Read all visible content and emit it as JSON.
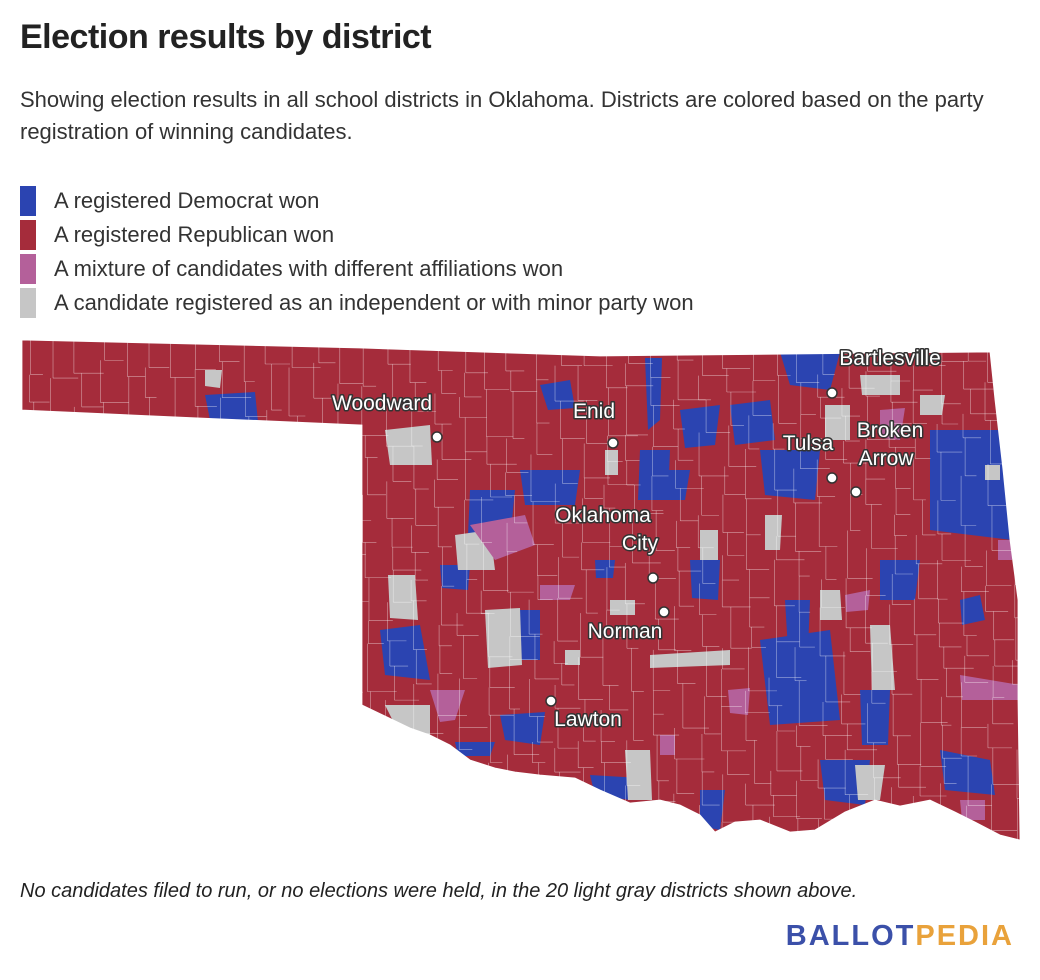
{
  "header": {
    "title": "Election results by district",
    "subtitle": "Showing election results in all school districts in Oklahoma. Districts are colored based on the party registration of winning candidates."
  },
  "legend": {
    "items": [
      {
        "label": "A registered Democrat won",
        "color": "#2b44b1"
      },
      {
        "label": "A registered Republican won",
        "color": "#a52c3b"
      },
      {
        "label": "A mixture of candidates with different affiliations won",
        "color": "#b4609a"
      },
      {
        "label": "A candidate registered as an independent or with minor party won",
        "color": "#c6c6c6"
      }
    ]
  },
  "map": {
    "cities": [
      {
        "name": "Woodward"
      },
      {
        "name": "Enid"
      },
      {
        "name": "Bartlesville"
      },
      {
        "name": "Tulsa"
      },
      {
        "name": "Broken Arrow"
      },
      {
        "name": "Oklahoma City"
      },
      {
        "name": "Norman"
      },
      {
        "name": "Lawton"
      }
    ]
  },
  "footnote": "No candidates filed to run, or no elections were held, in the 20 light gray districts shown above.",
  "logo": {
    "parts": [
      {
        "text": "BALLOT",
        "color": "#3b50a9"
      },
      {
        "text": "PEDIA",
        "color": "#e9a23b"
      }
    ]
  }
}
